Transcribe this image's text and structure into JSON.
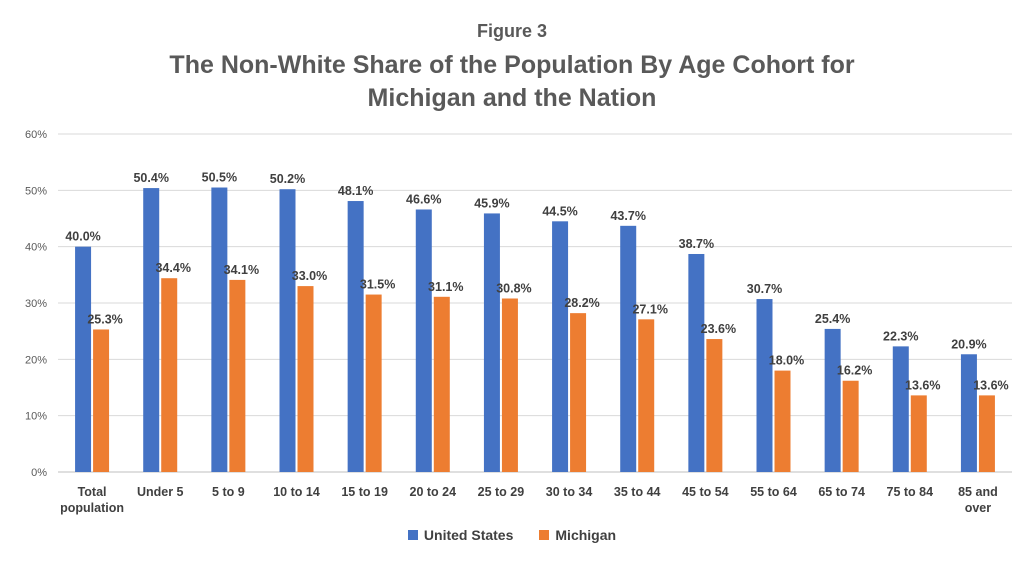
{
  "header": {
    "figure_label": "Figure 3",
    "title_line1": "The Non-White Share of the Population By Age Cohort for",
    "title_line2": "Michigan and the Nation"
  },
  "colors": {
    "united_states": "#4472C4",
    "michigan": "#ED7D31",
    "grid": "#D9D9D9"
  },
  "chart_data": {
    "type": "bar",
    "title": "The Non-White Share of the Population By Age Cohort for Michigan and the Nation",
    "categories": [
      [
        "Total",
        "population"
      ],
      [
        "Under 5"
      ],
      [
        "5 to 9"
      ],
      [
        "10 to 14"
      ],
      [
        "15 to 19"
      ],
      [
        "20 to 24"
      ],
      [
        "25 to 29"
      ],
      [
        "30 to 34"
      ],
      [
        "35 to 44"
      ],
      [
        "45 to 54"
      ],
      [
        "55 to 64"
      ],
      [
        "65 to 74"
      ],
      [
        "75 to 84"
      ],
      [
        "85 and",
        "over"
      ]
    ],
    "series": [
      {
        "name": "United States",
        "values": [
          40.0,
          50.4,
          50.5,
          50.2,
          48.1,
          46.6,
          45.9,
          44.5,
          43.7,
          38.7,
          30.7,
          25.4,
          22.3,
          20.9
        ]
      },
      {
        "name": "Michigan",
        "values": [
          25.3,
          34.4,
          34.1,
          33.0,
          31.5,
          31.1,
          30.8,
          28.2,
          27.1,
          23.6,
          18.0,
          16.2,
          13.6,
          13.6
        ]
      }
    ],
    "ylim": [
      0,
      60
    ],
    "yticks": [
      "0%",
      "10%",
      "20%",
      "30%",
      "40%",
      "50%",
      "60%"
    ],
    "xlabel": "",
    "ylabel": "",
    "grid": true,
    "legend": "bottom"
  }
}
